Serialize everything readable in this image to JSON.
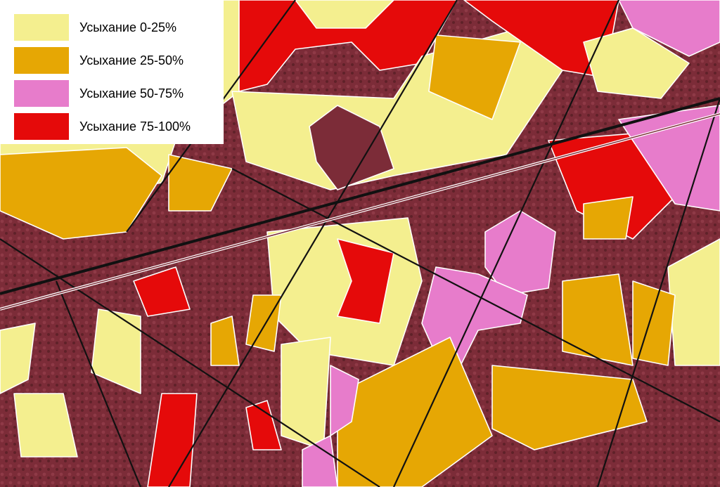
{
  "legend": {
    "items": [
      {
        "label": "Усыхание 0-25%",
        "color": "#f4ef8f"
      },
      {
        "label": "Усыхание 25-50%",
        "color": "#e6a704"
      },
      {
        "label": "Усыхание 50-75%",
        "color": "#e77ccb"
      },
      {
        "label": "Усыхание 75-100%",
        "color": "#e50a0a"
      }
    ]
  }
}
